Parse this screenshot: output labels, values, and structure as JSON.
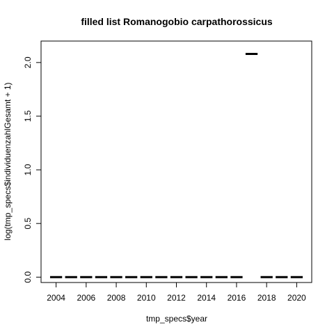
{
  "chart_data": {
    "type": "scatter",
    "title": "filled list Romanogobio carpathorossicus",
    "xlabel": "tmp_specs$year",
    "ylabel": "log(tmp_specs$individuenzahlGesamt + 1)",
    "xlim": [
      2003,
      2021
    ],
    "ylim": [
      -0.05,
      2.2
    ],
    "x": [
      2004,
      2005,
      2006,
      2007,
      2008,
      2009,
      2010,
      2011,
      2012,
      2013,
      2014,
      2015,
      2016,
      2017,
      2018,
      2019,
      2020
    ],
    "y": [
      0,
      0,
      0,
      0,
      0,
      0,
      0,
      0,
      0,
      0,
      0,
      0,
      0,
      2.08,
      0,
      0,
      0
    ],
    "x_ticks": [
      2004,
      2006,
      2008,
      2010,
      2012,
      2014,
      2016,
      2018,
      2020
    ],
    "x_tick_labels": [
      "2004",
      "2006",
      "2008",
      "2010",
      "2012",
      "2014",
      "2016",
      "2018",
      "2020"
    ],
    "y_ticks": [
      0.0,
      0.5,
      1.0,
      1.5,
      2.0
    ],
    "y_tick_labels": [
      "0.0",
      "0.5",
      "1.0",
      "1.5",
      "2.0"
    ],
    "grid": false,
    "marker": "horizontal-bar",
    "color": "#000000"
  }
}
